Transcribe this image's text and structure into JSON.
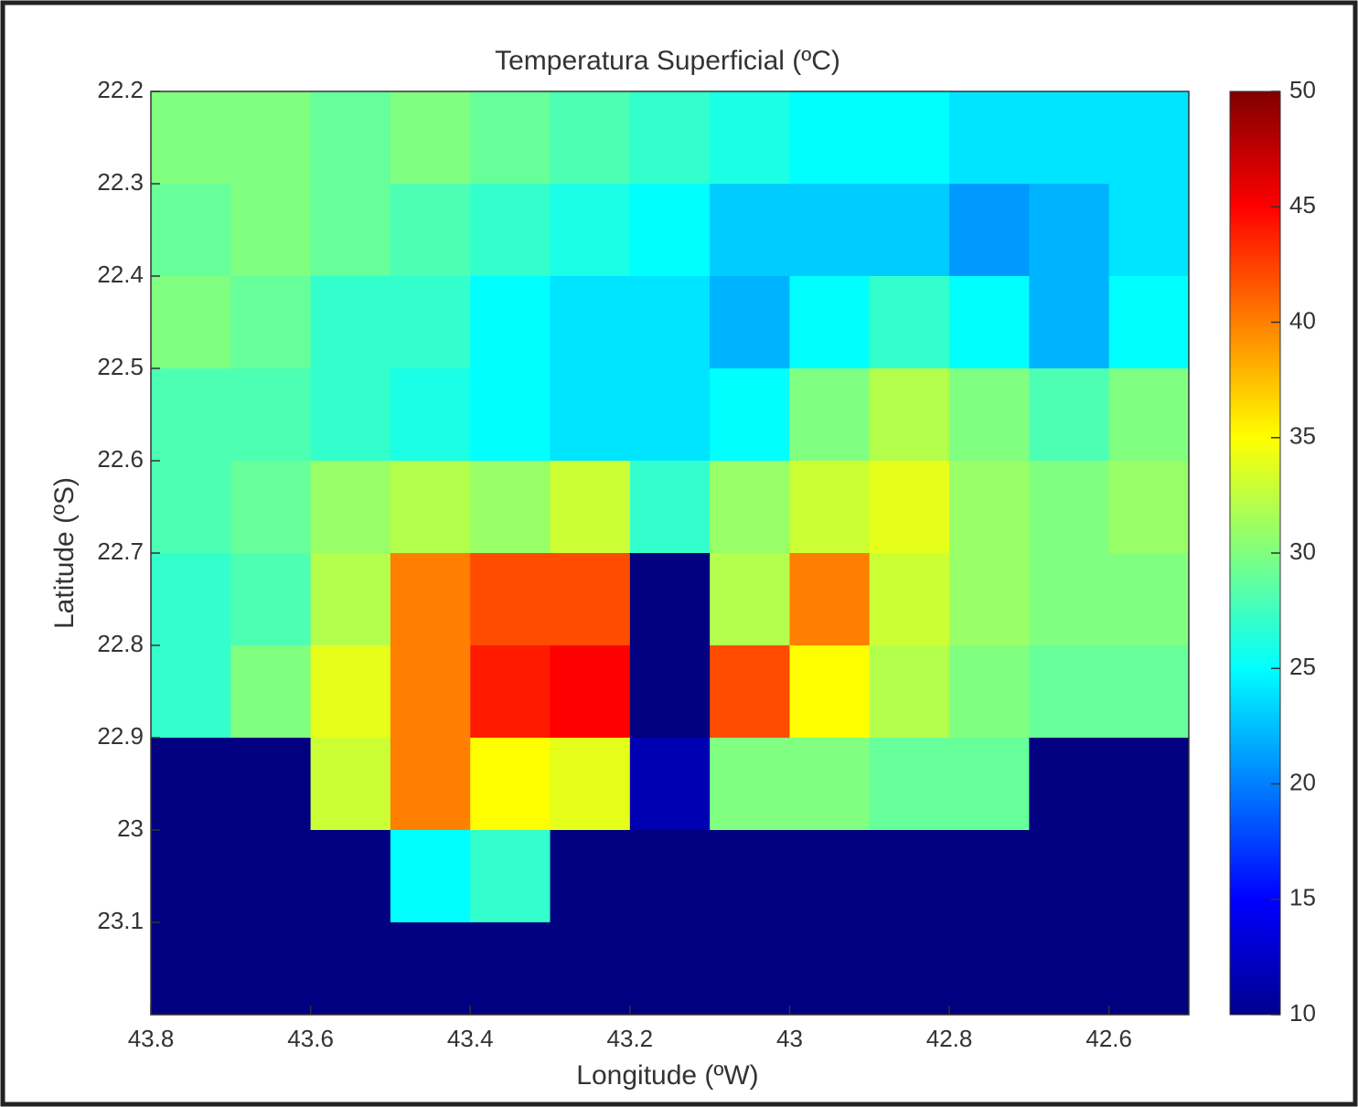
{
  "chart_data": {
    "type": "heatmap",
    "title": "Temperatura Superficial (ºC)",
    "x_label": "Longitude (ºW)",
    "y_label": "Latitude (ºS)",
    "xlim": [
      43.8,
      42.5
    ],
    "xticks": [
      43.8,
      43.6,
      43.4,
      43.2,
      43,
      42.8,
      42.6
    ],
    "ylim": [
      22.2,
      23.2
    ],
    "yticks": [
      22.2,
      22.3,
      22.4,
      22.5,
      22.6,
      22.7,
      22.8,
      22.9,
      23,
      23.1
    ],
    "colormap": "jet",
    "clim": [
      10,
      50
    ],
    "colorbar_ticks": [
      10,
      15,
      20,
      25,
      30,
      35,
      40,
      45,
      50
    ],
    "values": [
      [
        30,
        30,
        29,
        30,
        29,
        28,
        27,
        26,
        25,
        25,
        24,
        24,
        24
      ],
      [
        29,
        30,
        29,
        28,
        27,
        26,
        25,
        23,
        23,
        23,
        21,
        22,
        24
      ],
      [
        30,
        29,
        27,
        27,
        25,
        24,
        24,
        22,
        25,
        27,
        25,
        22,
        25
      ],
      [
        28,
        28,
        27,
        26,
        25,
        24,
        24,
        25,
        30,
        32,
        30,
        28,
        30
      ],
      [
        28,
        29,
        31,
        32,
        31,
        33,
        27,
        31,
        33,
        34,
        31,
        30,
        31
      ],
      [
        27,
        28,
        32,
        40,
        42,
        42,
        10,
        32,
        40,
        33,
        31,
        30,
        30
      ],
      [
        27,
        30,
        34,
        40,
        44,
        45,
        10,
        42,
        35,
        32,
        30,
        29,
        29
      ],
      [
        10,
        10,
        33,
        40,
        35,
        34,
        12,
        30,
        30,
        29,
        29,
        10,
        10
      ],
      [
        10,
        10,
        10,
        25,
        27,
        10,
        10,
        10,
        10,
        10,
        10,
        10,
        10
      ],
      [
        10,
        10,
        10,
        10,
        10,
        10,
        10,
        10,
        10,
        10,
        10,
        10,
        10
      ]
    ]
  }
}
